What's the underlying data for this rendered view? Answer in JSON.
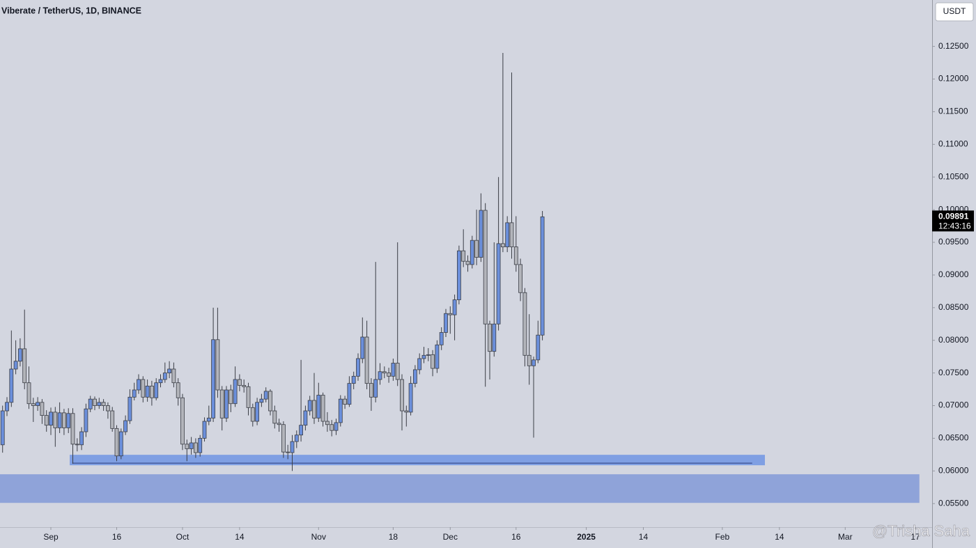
{
  "chart_data": {
    "type": "candlestick",
    "title": "Viberate / TetherUS, 1D, BINANCE",
    "currency": "USDT",
    "last_price": 0.09891,
    "countdown": "12:43:16",
    "watermark": "@Trisha Saha",
    "up_color": "#6b8fdb",
    "down_color": "#b3b5bb",
    "xlim": [
      -0.59,
      211.8
    ],
    "ylim": [
      0.0514,
      0.1321
    ],
    "yticks": [
      {
        "value": 0.055,
        "label": "0.05500"
      },
      {
        "value": 0.06,
        "label": "0.06000"
      },
      {
        "value": 0.065,
        "label": "0.06500"
      },
      {
        "value": 0.07,
        "label": "0.07000"
      },
      {
        "value": 0.075,
        "label": "0.07500"
      },
      {
        "value": 0.08,
        "label": "0.08000"
      },
      {
        "value": 0.085,
        "label": "0.08500"
      },
      {
        "value": 0.09,
        "label": "0.09000"
      },
      {
        "value": 0.095,
        "label": "0.09500"
      },
      {
        "value": 0.1,
        "label": "0.10000"
      },
      {
        "value": 0.105,
        "label": "0.10500"
      },
      {
        "value": 0.11,
        "label": "0.11000"
      },
      {
        "value": 0.115,
        "label": "0.11500"
      },
      {
        "value": 0.12,
        "label": "0.12000"
      },
      {
        "value": 0.125,
        "label": "0.12500"
      }
    ],
    "xticks": [
      {
        "value": 11,
        "label": "Sep"
      },
      {
        "value": 26,
        "label": "16"
      },
      {
        "value": 41,
        "label": "Oct"
      },
      {
        "value": 54,
        "label": "14"
      },
      {
        "value": 72,
        "label": "Nov"
      },
      {
        "value": 89,
        "label": "18"
      },
      {
        "value": 102,
        "label": "Dec"
      },
      {
        "value": 117,
        "label": "16"
      },
      {
        "value": 133,
        "label": "2025"
      },
      {
        "value": 146,
        "label": "14"
      },
      {
        "value": 164,
        "label": "Feb"
      },
      {
        "value": 177,
        "label": "14"
      },
      {
        "value": 192,
        "label": "Mar"
      },
      {
        "value": 208,
        "label": "17"
      }
    ],
    "zones": [
      {
        "color": "#7f9fe3",
        "x": [
          15.3,
          173.7
        ],
        "y": [
          0.06087,
          0.06247
        ]
      },
      {
        "color": "#8fa3d9",
        "x": [
          -0.59,
          208.9
        ],
        "y": [
          0.05511,
          0.05949
        ]
      }
    ],
    "support_line": {
      "color": "#2a3b7a",
      "x": [
        15.9,
        170.8
      ],
      "value": 0.0612
    },
    "open": [
      0.064,
      0.0692,
      0.0705,
      0.0756,
      0.0768,
      0.0787,
      0.0735,
      0.0703,
      0.07,
      0.0705,
      0.0685,
      0.067,
      0.069,
      0.0666,
      0.0689,
      0.0666,
      0.0688,
      0.0641,
      0.064,
      0.066,
      0.0695,
      0.071,
      0.07,
      0.0705,
      0.07,
      0.0692,
      0.0665,
      0.0623,
      0.066,
      0.0677,
      0.0713,
      0.0724,
      0.074,
      0.0713,
      0.073,
      0.0712,
      0.0735,
      0.074,
      0.075,
      0.0756,
      0.0735,
      0.0712,
      0.0641,
      0.0634,
      0.0643,
      0.0628,
      0.065,
      0.0676,
      0.0681,
      0.0801,
      0.0724,
      0.0681,
      0.0724,
      0.0703,
      0.074,
      0.0731,
      0.0729,
      0.0697,
      0.0676,
      0.0705,
      0.071,
      0.0722,
      0.0692,
      0.0673,
      0.0671,
      0.0629,
      0.0628,
      0.0645,
      0.0655,
      0.067,
      0.0692,
      0.0708,
      0.0681,
      0.0716,
      0.0676,
      0.0671,
      0.0662,
      0.0674,
      0.071,
      0.0702,
      0.0734,
      0.0745,
      0.0772,
      0.0805,
      0.0734,
      0.0713,
      0.074,
      0.0752,
      0.075,
      0.0745,
      0.0765,
      0.074,
      0.0692,
      0.069,
      0.0734,
      0.0755,
      0.0772,
      0.0777,
      0.0778,
      0.0757,
      0.0793,
      0.0812,
      0.0841,
      0.0839,
      0.0862,
      0.0937,
      0.0921,
      0.0916,
      0.0953,
      0.0927,
      0.0999,
      0.0825,
      0.0783,
      0.0825,
      0.0948,
      0.0943,
      0.098,
      0.0943,
      0.0916,
      0.0873,
      0.0777,
      0.0761,
      0.077,
      0.0808
    ],
    "high": [
      0.07,
      0.0713,
      0.0815,
      0.08,
      0.0803,
      0.0847,
      0.076,
      0.0712,
      0.0713,
      0.071,
      0.0693,
      0.0697,
      0.0698,
      0.0705,
      0.0695,
      0.0696,
      0.0696,
      0.065,
      0.0667,
      0.0703,
      0.0715,
      0.0714,
      0.0712,
      0.071,
      0.0705,
      0.0698,
      0.067,
      0.0665,
      0.0685,
      0.0725,
      0.0735,
      0.0748,
      0.0745,
      0.074,
      0.0738,
      0.0742,
      0.0748,
      0.0766,
      0.0768,
      0.0766,
      0.0742,
      0.0718,
      0.0648,
      0.0652,
      0.065,
      0.0655,
      0.0682,
      0.07,
      0.085,
      0.085,
      0.073,
      0.073,
      0.0732,
      0.076,
      0.0748,
      0.074,
      0.0735,
      0.0703,
      0.0712,
      0.0718,
      0.0728,
      0.0725,
      0.07,
      0.068,
      0.0676,
      0.064,
      0.0655,
      0.0662,
      0.077,
      0.07,
      0.0715,
      0.075,
      0.0735,
      0.072,
      0.069,
      0.0678,
      0.068,
      0.0716,
      0.0715,
      0.0745,
      0.0752,
      0.078,
      0.0835,
      0.083,
      0.0742,
      0.092,
      0.0765,
      0.076,
      0.0758,
      0.0772,
      0.095,
      0.0748,
      0.07,
      0.0745,
      0.0762,
      0.078,
      0.079,
      0.0788,
      0.0785,
      0.08,
      0.082,
      0.0848,
      0.0852,
      0.087,
      0.0945,
      0.097,
      0.093,
      0.096,
      0.1,
      0.1025,
      0.101,
      0.083,
      0.095,
      0.105,
      0.124,
      0.099,
      0.121,
      0.099,
      0.0925,
      0.088,
      0.084,
      0.0775,
      0.083,
      0.0998
    ],
    "low": [
      0.0628,
      0.0684,
      0.0698,
      0.0748,
      0.076,
      0.0725,
      0.0695,
      0.0675,
      0.0692,
      0.0672,
      0.066,
      0.0655,
      0.0637,
      0.0658,
      0.0655,
      0.0658,
      0.0611,
      0.063,
      0.0632,
      0.0652,
      0.069,
      0.0693,
      0.0695,
      0.0692,
      0.068,
      0.066,
      0.0615,
      0.0618,
      0.0655,
      0.0672,
      0.0708,
      0.0718,
      0.0705,
      0.0706,
      0.07,
      0.0708,
      0.0728,
      0.0735,
      0.0742,
      0.0728,
      0.07,
      0.0632,
      0.0615,
      0.0625,
      0.062,
      0.0622,
      0.0645,
      0.067,
      0.0675,
      0.0712,
      0.0662,
      0.0675,
      0.069,
      0.0698,
      0.0722,
      0.072,
      0.0685,
      0.0668,
      0.067,
      0.0698,
      0.0705,
      0.0685,
      0.0665,
      0.066,
      0.062,
      0.0618,
      0.06,
      0.0635,
      0.0645,
      0.0662,
      0.0685,
      0.0672,
      0.0675,
      0.0668,
      0.066,
      0.0653,
      0.0655,
      0.0668,
      0.0695,
      0.0698,
      0.0725,
      0.0738,
      0.0765,
      0.0725,
      0.0692,
      0.0705,
      0.0732,
      0.0742,
      0.0735,
      0.0738,
      0.073,
      0.0662,
      0.0668,
      0.0685,
      0.0728,
      0.0748,
      0.0765,
      0.0768,
      0.0745,
      0.075,
      0.0785,
      0.0805,
      0.081,
      0.08,
      0.0855,
      0.0912,
      0.0905,
      0.091,
      0.0915,
      0.092,
      0.0729,
      0.074,
      0.0775,
      0.0815,
      0.0935,
      0.0935,
      0.0925,
      0.0905,
      0.086,
      0.076,
      0.0732,
      0.0651,
      0.0765,
      0.08
    ],
    "close": [
      0.0692,
      0.0705,
      0.0756,
      0.0768,
      0.0787,
      0.0735,
      0.0703,
      0.07,
      0.0705,
      0.0685,
      0.067,
      0.069,
      0.0666,
      0.0689,
      0.0666,
      0.0688,
      0.0641,
      0.064,
      0.066,
      0.0695,
      0.071,
      0.07,
      0.0705,
      0.07,
      0.0692,
      0.0665,
      0.0623,
      0.066,
      0.0677,
      0.0713,
      0.0724,
      0.074,
      0.0713,
      0.073,
      0.0712,
      0.0735,
      0.074,
      0.075,
      0.0756,
      0.0735,
      0.0712,
      0.0641,
      0.0634,
      0.0643,
      0.0628,
      0.065,
      0.0676,
      0.0681,
      0.0801,
      0.0724,
      0.0681,
      0.0724,
      0.0703,
      0.074,
      0.0731,
      0.0729,
      0.0697,
      0.0676,
      0.0705,
      0.071,
      0.0722,
      0.0692,
      0.0673,
      0.0671,
      0.0629,
      0.0628,
      0.0645,
      0.0655,
      0.067,
      0.0692,
      0.0708,
      0.0681,
      0.0716,
      0.0676,
      0.0671,
      0.0662,
      0.0674,
      0.071,
      0.0702,
      0.0734,
      0.0745,
      0.0772,
      0.0805,
      0.0734,
      0.0713,
      0.074,
      0.0752,
      0.075,
      0.0745,
      0.0765,
      0.074,
      0.0692,
      0.069,
      0.0734,
      0.0755,
      0.0772,
      0.0777,
      0.0778,
      0.0757,
      0.0793,
      0.0812,
      0.0841,
      0.0839,
      0.0862,
      0.0937,
      0.0921,
      0.0916,
      0.0953,
      0.0927,
      0.0999,
      0.0825,
      0.0783,
      0.0825,
      0.0948,
      0.0943,
      0.098,
      0.0943,
      0.0916,
      0.0873,
      0.0777,
      0.0761,
      0.077,
      0.0808,
      0.09891
    ]
  }
}
